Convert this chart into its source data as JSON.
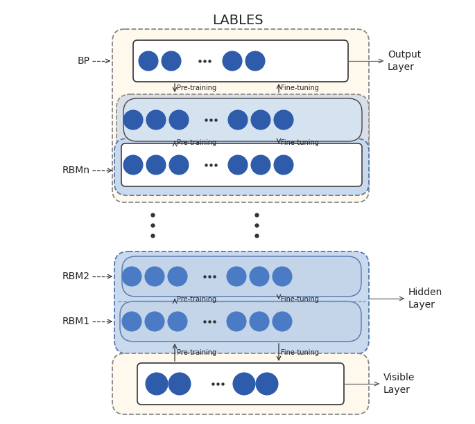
{
  "title": "LABLES",
  "title_fontsize": 14,
  "bg_color": "#ffffff",
  "cream_color": "#fef9ec",
  "blue_light_color": "#c9d9ee",
  "blue_medium_color": "#aabbd8",
  "gray_light_color": "#d8dfe8",
  "node_blue_dark": "#2e5baa",
  "node_blue_mid": "#4a7bc4",
  "node_blue_light": "#6a95cc",
  "labels": {
    "BP": "BP",
    "RBMn": "RBMn",
    "RBM2": "RBM2",
    "RBM1": "RBM1",
    "output_layer": "Output\nLayer",
    "hidden_layer": "Hidden\nLayer",
    "visible_layer": "Visible\nLayer",
    "pre_training": "Pre-training",
    "fine_tuning": "Fine-tuning"
  },
  "figsize": [
    6.85,
    6.12
  ],
  "dpi": 100
}
